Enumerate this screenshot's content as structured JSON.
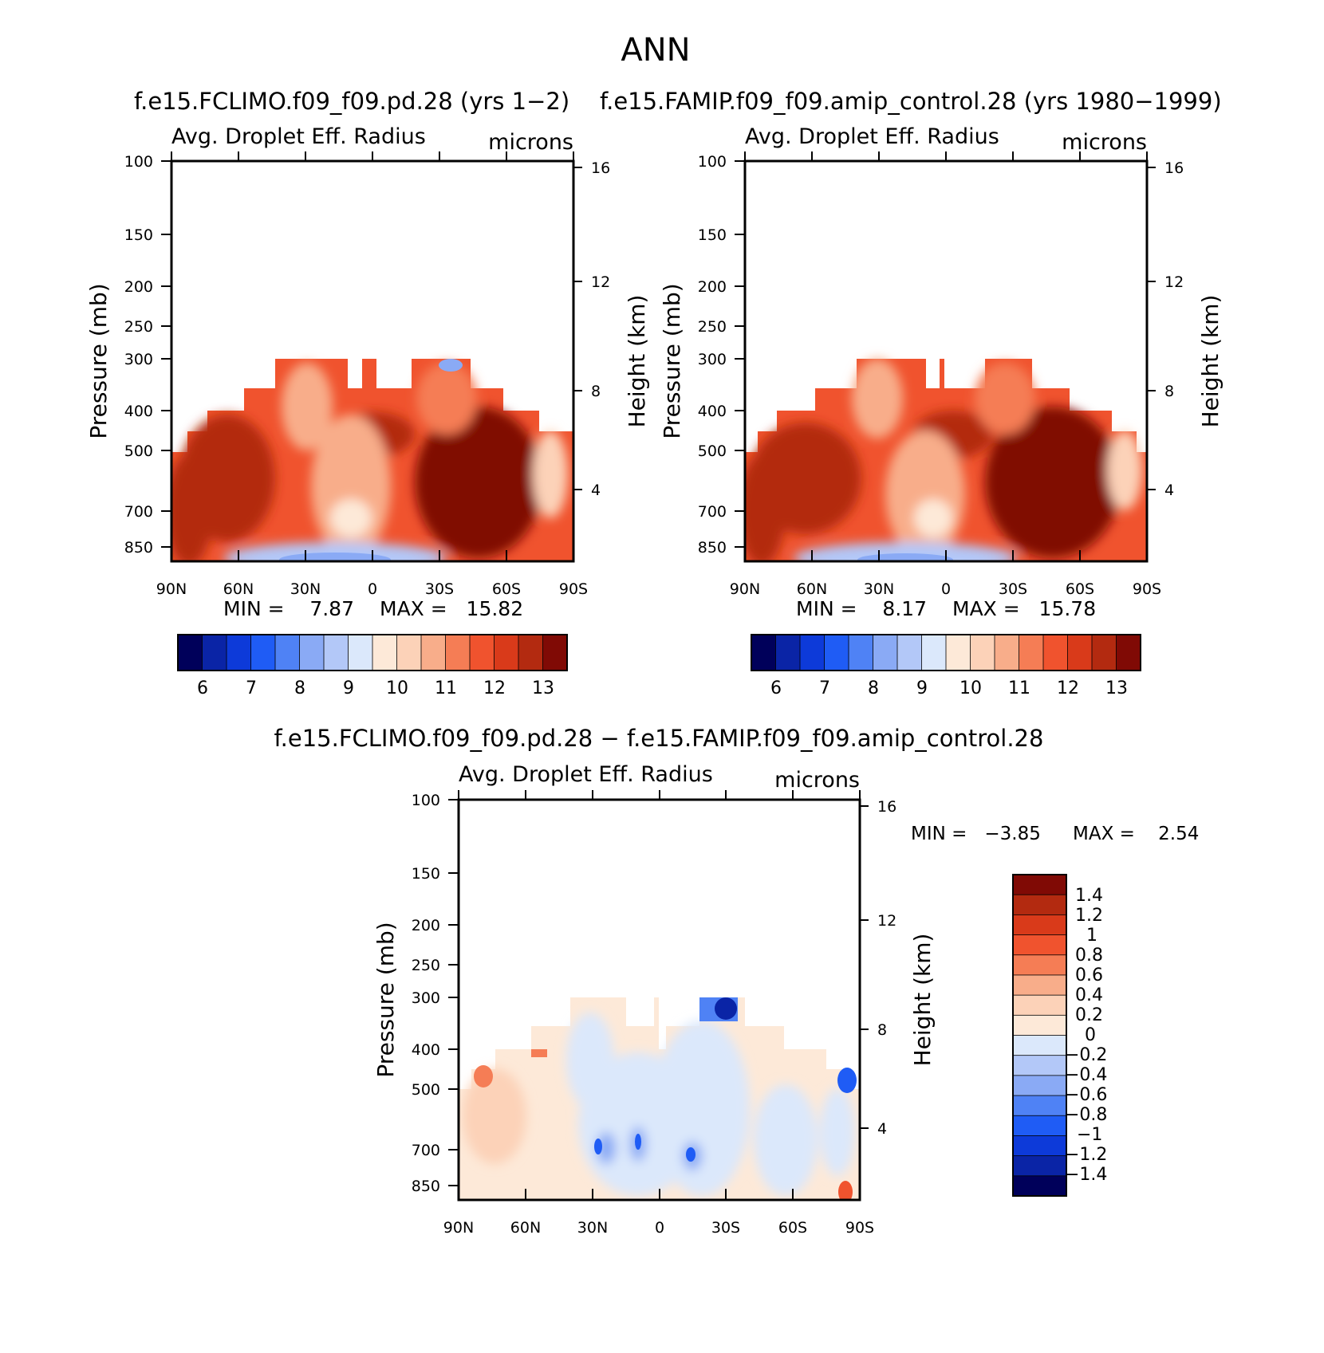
{
  "title": "ANN",
  "chart_data": [
    {
      "type": "heatmap",
      "panel": "top-left",
      "case_title": "f.e15.FCLIMO.f09_f09.pd.28 (yrs 1−2)",
      "variable": "Avg. Droplet Eff. Radius",
      "units": "microns",
      "ylabel": "Pressure (mb)",
      "ylabel_right": "Height (km)",
      "x_ticks": [
        "90N",
        "60N",
        "30N",
        "0",
        "30S",
        "60S",
        "90S"
      ],
      "pressure_ticks": [
        "100",
        "150",
        "200",
        "250",
        "300",
        "400",
        "500",
        "700",
        "850"
      ],
      "height_ticks": [
        "16",
        "12",
        "8",
        "4"
      ],
      "ylim": [
        100,
        1000
      ],
      "min_text": "MIN =    7.87",
      "max_text": "MAX =   15.82",
      "min": 7.87,
      "max": 15.82,
      "colorbar_labels": [
        "6",
        "7",
        "8",
        "9",
        "10",
        "11",
        "12",
        "13"
      ],
      "colorbar_levels": [
        5.5,
        6,
        6.5,
        7,
        7.5,
        8,
        8.5,
        9,
        9.5,
        10,
        10.5,
        11,
        11.5,
        12,
        12.5,
        13,
        13.5
      ],
      "colorbar_orientation": "horizontal"
    },
    {
      "type": "heatmap",
      "panel": "top-right",
      "case_title": "f.e15.FAMIP.f09_f09.amip_control.28 (yrs 1980−1999)",
      "variable": "Avg. Droplet Eff. Radius",
      "units": "microns",
      "ylabel": "Pressure (mb)",
      "ylabel_right": "Height (km)",
      "x_ticks": [
        "90N",
        "60N",
        "30N",
        "0",
        "30S",
        "60S",
        "90S"
      ],
      "pressure_ticks": [
        "100",
        "150",
        "200",
        "250",
        "300",
        "400",
        "500",
        "700",
        "850"
      ],
      "height_ticks": [
        "16",
        "12",
        "8",
        "4"
      ],
      "ylim": [
        100,
        1000
      ],
      "min_text": "MIN =    8.17",
      "max_text": "MAX =   15.78",
      "min": 8.17,
      "max": 15.78,
      "colorbar_labels": [
        "6",
        "7",
        "8",
        "9",
        "10",
        "11",
        "12",
        "13"
      ],
      "colorbar_levels": [
        5.5,
        6,
        6.5,
        7,
        7.5,
        8,
        8.5,
        9,
        9.5,
        10,
        10.5,
        11,
        11.5,
        12,
        12.5,
        13,
        13.5
      ],
      "colorbar_orientation": "horizontal"
    },
    {
      "type": "heatmap",
      "panel": "bottom-difference",
      "case_title": "f.e15.FCLIMO.f09_f09.pd.28 − f.e15.FAMIP.f09_f09.amip_control.28",
      "variable": "Avg. Droplet Eff. Radius",
      "units": "microns",
      "ylabel": "Pressure (mb)",
      "ylabel_right": "Height (km)",
      "x_ticks": [
        "90N",
        "60N",
        "30N",
        "0",
        "30S",
        "60S",
        "90S"
      ],
      "pressure_ticks": [
        "100",
        "150",
        "200",
        "250",
        "300",
        "400",
        "500",
        "700",
        "850"
      ],
      "height_ticks": [
        "16",
        "12",
        "8",
        "4"
      ],
      "ylim": [
        100,
        1000
      ],
      "min_text": "MIN =   −3.85",
      "max_text": "MAX =    2.54",
      "min": -3.85,
      "max": 2.54,
      "colorbar_labels": [
        "1.4",
        "1.2",
        "1",
        "0.8",
        "0.6",
        "0.4",
        "0.2",
        "0",
        "−0.2",
        "−0.4",
        "−0.6",
        "−0.8",
        "−1",
        "−1.2",
        "−1.4"
      ],
      "colorbar_levels": [
        1.4,
        1.2,
        1,
        0.8,
        0.6,
        0.4,
        0.2,
        0,
        -0.2,
        -0.4,
        -0.6,
        -0.8,
        -1,
        -1.2,
        -1.4
      ],
      "colorbar_orientation": "vertical"
    }
  ],
  "colors": {
    "colormap": [
      "#00005a",
      "#0a24a6",
      "#0d3ad9",
      "#1f5cf5",
      "#4f82f5",
      "#8aaaf5",
      "#b3c8f8",
      "#dbe8fb",
      "#fde9d8",
      "#fcd2b8",
      "#f8ad8a",
      "#f57d55",
      "#f0532e",
      "#d93a1a",
      "#b32a10",
      "#800a05"
    ]
  }
}
